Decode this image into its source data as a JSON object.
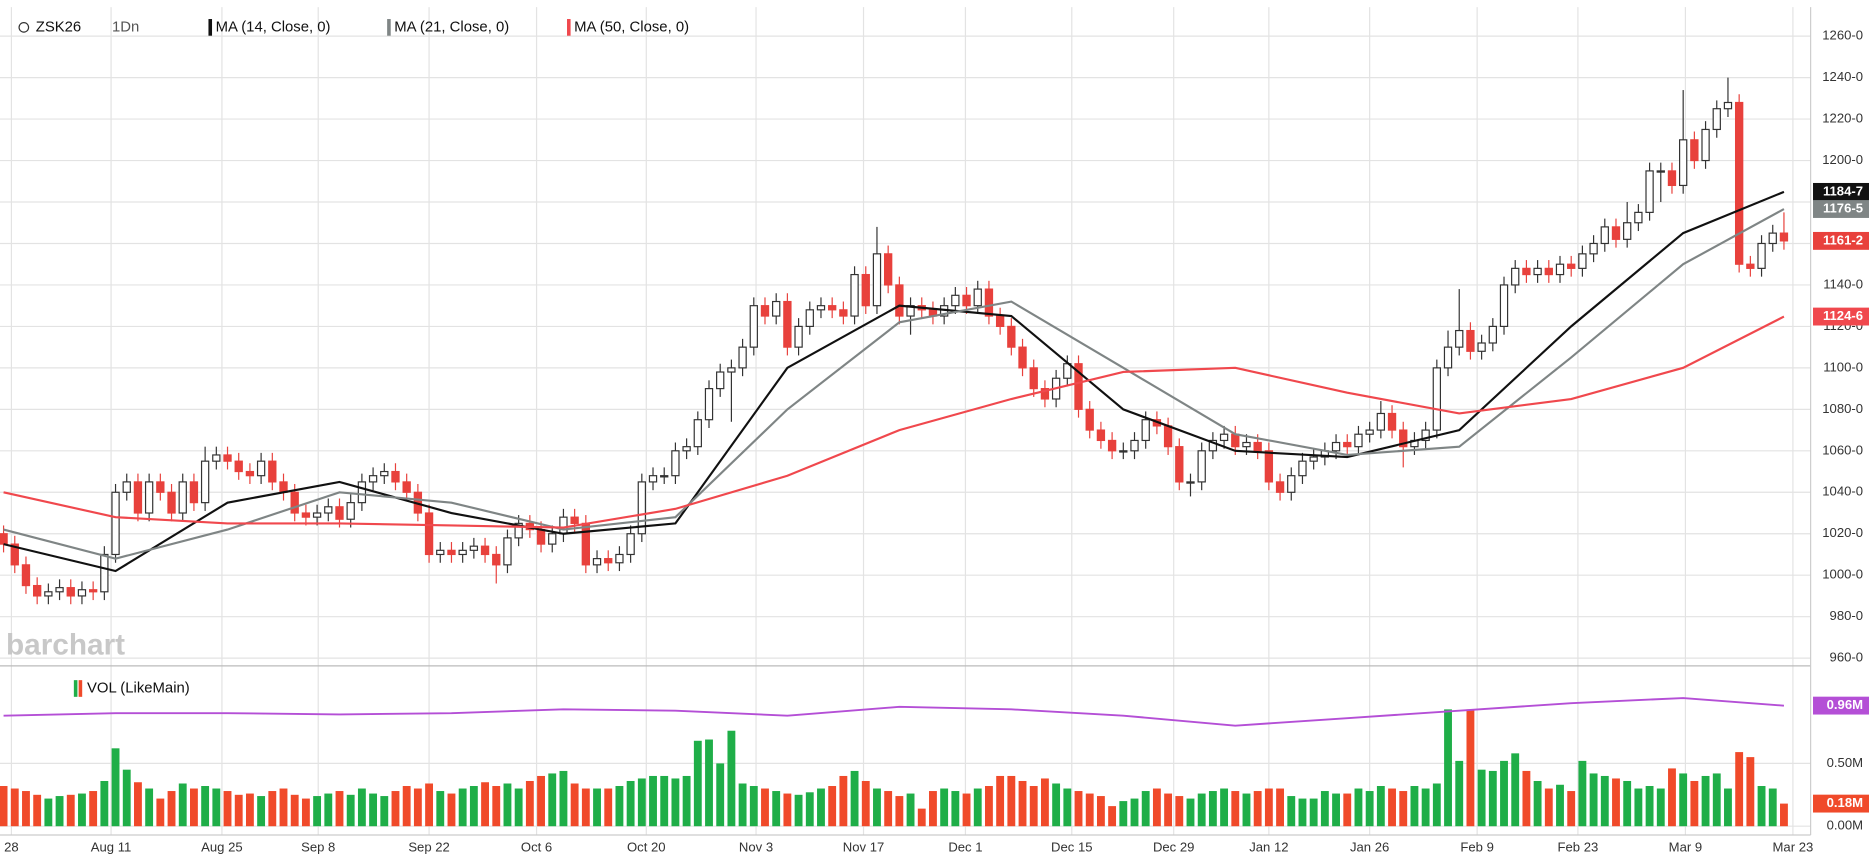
{
  "chart_data": {
    "type": "candlestick",
    "symbol": "ZSK26",
    "interval": "1Dn",
    "watermark": "barchart",
    "up_color": "#ffffff",
    "down_color": "#e8413c",
    "vol_up_color": "#1fae48",
    "vol_down_color": "#f04a2a",
    "ylim": [
      958,
      1274
    ],
    "yticks": [
      {
        "value": 960,
        "label": "960-0"
      },
      {
        "value": 980,
        "label": "980-0"
      },
      {
        "value": 1000,
        "label": "1000-0"
      },
      {
        "value": 1020,
        "label": "1020-0"
      },
      {
        "value": 1040,
        "label": "1040-0"
      },
      {
        "value": 1060,
        "label": "1060-0"
      },
      {
        "value": 1080,
        "label": "1080-0"
      },
      {
        "value": 1100,
        "label": "1100-0"
      },
      {
        "value": 1120,
        "label": "1120-0"
      },
      {
        "value": 1140,
        "label": "1140-0"
      },
      {
        "value": 1160,
        "label": "1160-0"
      },
      {
        "value": 1180,
        "label": "1180-0"
      },
      {
        "value": 1200,
        "label": "1200-0"
      },
      {
        "value": 1220,
        "label": "1220-0"
      },
      {
        "value": 1240,
        "label": "1240-0"
      },
      {
        "value": 1260,
        "label": "1260-0"
      }
    ],
    "xticks": [
      {
        "value": 0.7,
        "label": "28"
      },
      {
        "value": 9.6,
        "label": "Aug 11"
      },
      {
        "value": 19.5,
        "label": "Aug 25"
      },
      {
        "value": 28.1,
        "label": "Sep 8"
      },
      {
        "value": 38,
        "label": "Sep 22"
      },
      {
        "value": 47.6,
        "label": "Oct 6"
      },
      {
        "value": 57.4,
        "label": "Oct 20"
      },
      {
        "value": 67.2,
        "label": "Nov 3"
      },
      {
        "value": 76.8,
        "label": "Nov 17"
      },
      {
        "value": 85.9,
        "label": "Dec 1"
      },
      {
        "value": 95.4,
        "label": "Dec 15"
      },
      {
        "value": 104.5,
        "label": "Dec 29"
      },
      {
        "value": 113,
        "label": "Jan 12"
      },
      {
        "value": 122,
        "label": "Jan 26"
      },
      {
        "value": 131.6,
        "label": "Feb 9"
      },
      {
        "value": 140.6,
        "label": "Feb 23"
      },
      {
        "value": 150.2,
        "label": "Mar 9"
      },
      {
        "value": 159.8,
        "label": "Mar 23"
      }
    ],
    "candles": [
      [
        1020,
        1024,
        1011,
        1015
      ],
      [
        1015,
        1019,
        1001,
        1005
      ],
      [
        1005,
        1009,
        991,
        995
      ],
      [
        995,
        999,
        986,
        990
      ],
      [
        990,
        996,
        986,
        992
      ],
      [
        992,
        998,
        988,
        994
      ],
      [
        994,
        998,
        986,
        990
      ],
      [
        990,
        997,
        986,
        993
      ],
      [
        993,
        997,
        988,
        992
      ],
      [
        992,
        1014,
        988,
        1010
      ],
      [
        1010,
        1044,
        1006,
        1040
      ],
      [
        1040,
        1049,
        1036,
        1045
      ],
      [
        1045,
        1049,
        1026,
        1030
      ],
      [
        1030,
        1049,
        1026,
        1045
      ],
      [
        1045,
        1049,
        1036,
        1040
      ],
      [
        1040,
        1044,
        1026,
        1030
      ],
      [
        1030,
        1049,
        1026,
        1045
      ],
      [
        1045,
        1049,
        1031,
        1035
      ],
      [
        1035,
        1062,
        1031,
        1055
      ],
      [
        1055,
        1062,
        1051,
        1058
      ],
      [
        1058,
        1062,
        1051,
        1055
      ],
      [
        1055,
        1059,
        1046,
        1050
      ],
      [
        1050,
        1054,
        1044,
        1048
      ],
      [
        1048,
        1059,
        1044,
        1055
      ],
      [
        1055,
        1059,
        1041,
        1045
      ],
      [
        1045,
        1049,
        1036,
        1040
      ],
      [
        1040,
        1044,
        1026,
        1030
      ],
      [
        1030,
        1034,
        1024,
        1028
      ],
      [
        1028,
        1034,
        1024,
        1030
      ],
      [
        1030,
        1037,
        1026,
        1033
      ],
      [
        1033,
        1037,
        1023,
        1027
      ],
      [
        1027,
        1039,
        1023,
        1035
      ],
      [
        1035,
        1049,
        1031,
        1045
      ],
      [
        1045,
        1052,
        1041,
        1048
      ],
      [
        1048,
        1054,
        1044,
        1050
      ],
      [
        1050,
        1054,
        1041,
        1045
      ],
      [
        1045,
        1049,
        1036,
        1040
      ],
      [
        1040,
        1044,
        1026,
        1030
      ],
      [
        1030,
        1034,
        1006,
        1010
      ],
      [
        1010,
        1016,
        1006,
        1012
      ],
      [
        1012,
        1016,
        1006,
        1010
      ],
      [
        1010,
        1016,
        1006,
        1012
      ],
      [
        1012,
        1018,
        1008,
        1014
      ],
      [
        1014,
        1018,
        1006,
        1010
      ],
      [
        1010,
        1014,
        996,
        1005
      ],
      [
        1005,
        1022,
        1001,
        1018
      ],
      [
        1018,
        1029,
        1014,
        1025
      ],
      [
        1025,
        1029,
        1018,
        1022
      ],
      [
        1022,
        1026,
        1011,
        1015
      ],
      [
        1015,
        1024,
        1011,
        1020
      ],
      [
        1020,
        1032,
        1016,
        1028
      ],
      [
        1028,
        1032,
        1021,
        1025
      ],
      [
        1025,
        1029,
        1001,
        1005
      ],
      [
        1005,
        1012,
        1001,
        1008
      ],
      [
        1008,
        1012,
        1002,
        1006
      ],
      [
        1006,
        1014,
        1002,
        1010
      ],
      [
        1010,
        1024,
        1006,
        1020
      ],
      [
        1020,
        1049,
        1016,
        1045
      ],
      [
        1045,
        1052,
        1041,
        1048
      ],
      [
        1048,
        1052,
        1044,
        1048
      ],
      [
        1048,
        1064,
        1044,
        1060
      ],
      [
        1060,
        1066,
        1056,
        1062
      ],
      [
        1062,
        1079,
        1058,
        1075
      ],
      [
        1075,
        1094,
        1071,
        1090
      ],
      [
        1090,
        1102,
        1086,
        1098
      ],
      [
        1098,
        1104,
        1074,
        1100
      ],
      [
        1100,
        1114,
        1096,
        1110
      ],
      [
        1110,
        1134,
        1106,
        1130
      ],
      [
        1130,
        1134,
        1121,
        1125
      ],
      [
        1125,
        1136,
        1121,
        1132
      ],
      [
        1132,
        1136,
        1106,
        1110
      ],
      [
        1110,
        1124,
        1106,
        1120
      ],
      [
        1120,
        1132,
        1116,
        1128
      ],
      [
        1128,
        1134,
        1124,
        1130
      ],
      [
        1130,
        1134,
        1124,
        1128
      ],
      [
        1128,
        1132,
        1121,
        1125
      ],
      [
        1125,
        1149,
        1121,
        1145
      ],
      [
        1145,
        1149,
        1126,
        1130
      ],
      [
        1130,
        1168,
        1126,
        1155
      ],
      [
        1155,
        1159,
        1136,
        1140
      ],
      [
        1140,
        1144,
        1121,
        1125
      ],
      [
        1125,
        1134,
        1116,
        1130
      ],
      [
        1130,
        1134,
        1124,
        1128
      ],
      [
        1128,
        1132,
        1121,
        1125
      ],
      [
        1125,
        1134,
        1121,
        1130
      ],
      [
        1130,
        1139,
        1126,
        1135
      ],
      [
        1135,
        1139,
        1126,
        1130
      ],
      [
        1130,
        1142,
        1126,
        1138
      ],
      [
        1138,
        1142,
        1121,
        1125
      ],
      [
        1125,
        1129,
        1116,
        1120
      ],
      [
        1120,
        1124,
        1106,
        1110
      ],
      [
        1110,
        1114,
        1096,
        1100
      ],
      [
        1100,
        1104,
        1086,
        1090
      ],
      [
        1090,
        1094,
        1081,
        1085
      ],
      [
        1085,
        1099,
        1081,
        1095
      ],
      [
        1095,
        1106,
        1091,
        1102
      ],
      [
        1102,
        1106,
        1076,
        1080
      ],
      [
        1080,
        1084,
        1066,
        1070
      ],
      [
        1070,
        1074,
        1061,
        1065
      ],
      [
        1065,
        1069,
        1056,
        1060
      ],
      [
        1060,
        1064,
        1056,
        1060
      ],
      [
        1060,
        1069,
        1056,
        1065
      ],
      [
        1065,
        1079,
        1061,
        1075
      ],
      [
        1075,
        1079,
        1068,
        1072
      ],
      [
        1072,
        1076,
        1058,
        1062
      ],
      [
        1062,
        1066,
        1041,
        1045
      ],
      [
        1045,
        1049,
        1038,
        1045
      ],
      [
        1045,
        1064,
        1041,
        1060
      ],
      [
        1060,
        1069,
        1056,
        1065
      ],
      [
        1065,
        1072,
        1061,
        1068
      ],
      [
        1068,
        1072,
        1058,
        1062
      ],
      [
        1062,
        1068,
        1058,
        1064
      ],
      [
        1064,
        1068,
        1056,
        1060
      ],
      [
        1060,
        1064,
        1041,
        1045
      ],
      [
        1045,
        1049,
        1036,
        1040
      ],
      [
        1040,
        1052,
        1036,
        1048
      ],
      [
        1048,
        1059,
        1044,
        1055
      ],
      [
        1055,
        1061,
        1051,
        1057
      ],
      [
        1057,
        1064,
        1053,
        1060
      ],
      [
        1060,
        1068,
        1056,
        1064
      ],
      [
        1064,
        1068,
        1058,
        1062
      ],
      [
        1062,
        1072,
        1058,
        1068
      ],
      [
        1068,
        1074,
        1064,
        1070
      ],
      [
        1070,
        1084,
        1066,
        1078
      ],
      [
        1078,
        1082,
        1066,
        1070
      ],
      [
        1070,
        1074,
        1052,
        1062
      ],
      [
        1062,
        1069,
        1058,
        1065
      ],
      [
        1065,
        1074,
        1061,
        1070
      ],
      [
        1070,
        1104,
        1066,
        1100
      ],
      [
        1100,
        1118,
        1096,
        1110
      ],
      [
        1110,
        1138,
        1106,
        1118
      ],
      [
        1118,
        1122,
        1104,
        1108
      ],
      [
        1108,
        1116,
        1104,
        1112
      ],
      [
        1112,
        1124,
        1108,
        1120
      ],
      [
        1120,
        1144,
        1116,
        1140
      ],
      [
        1140,
        1152,
        1136,
        1148
      ],
      [
        1148,
        1152,
        1141,
        1145
      ],
      [
        1145,
        1152,
        1141,
        1148
      ],
      [
        1148,
        1152,
        1141,
        1145
      ],
      [
        1145,
        1154,
        1141,
        1150
      ],
      [
        1150,
        1154,
        1144,
        1148
      ],
      [
        1148,
        1159,
        1144,
        1155
      ],
      [
        1155,
        1164,
        1151,
        1160
      ],
      [
        1160,
        1172,
        1156,
        1168
      ],
      [
        1168,
        1172,
        1158,
        1162
      ],
      [
        1162,
        1180,
        1158,
        1170
      ],
      [
        1170,
        1179,
        1166,
        1175
      ],
      [
        1175,
        1199,
        1171,
        1195
      ],
      [
        1195,
        1199,
        1180,
        1195
      ],
      [
        1195,
        1199,
        1184,
        1188
      ],
      [
        1188,
        1234,
        1184,
        1210
      ],
      [
        1210,
        1214,
        1196,
        1200
      ],
      [
        1200,
        1219,
        1196,
        1215
      ],
      [
        1215,
        1229,
        1211,
        1225
      ],
      [
        1225,
        1240,
        1221,
        1228
      ],
      [
        1228,
        1232,
        1146,
        1150
      ],
      [
        1150,
        1154,
        1144,
        1148
      ],
      [
        1148,
        1164,
        1144,
        1160
      ],
      [
        1160,
        1169,
        1156,
        1165
      ],
      [
        1165,
        1175,
        1157,
        1161.25
      ]
    ],
    "last_price": {
      "value": 1161.25,
      "label": "1161-2"
    },
    "moving_averages": [
      {
        "name": "MA (14, Close, 0)",
        "color": "#111111",
        "x": [
          0,
          10,
          20,
          30,
          40,
          50,
          60,
          70,
          80,
          90,
          100,
          110,
          120,
          130,
          140,
          150,
          159
        ],
        "values": [
          1015,
          1002,
          1035,
          1045,
          1030,
          1020,
          1025,
          1100,
          1130,
          1125,
          1080,
          1060,
          1057,
          1070,
          1120,
          1165,
          1184.875
        ],
        "last": {
          "value": 1184.875,
          "label": "1184-7"
        }
      },
      {
        "name": "MA (21, Close, 0)",
        "color": "#7f8585",
        "x": [
          0,
          10,
          20,
          30,
          40,
          50,
          60,
          70,
          80,
          90,
          100,
          110,
          120,
          130,
          140,
          150,
          159
        ],
        "values": [
          1022,
          1008,
          1022,
          1040,
          1035,
          1022,
          1028,
          1080,
          1122,
          1132,
          1100,
          1068,
          1058,
          1062,
          1105,
          1150,
          1176.625
        ],
        "last": {
          "value": 1176.625,
          "label": "1176-5"
        }
      },
      {
        "name": "MA (50, Close, 0)",
        "color": "#f0484d",
        "x": [
          0,
          10,
          20,
          30,
          40,
          50,
          60,
          70,
          80,
          90,
          100,
          110,
          120,
          130,
          140,
          150,
          159
        ],
        "values": [
          1040,
          1028,
          1025,
          1025,
          1024,
          1023,
          1032,
          1048,
          1070,
          1085,
          1098,
          1100,
          1088,
          1078,
          1085,
          1100,
          1124.75
        ],
        "last": {
          "value": 1124.75,
          "label": "1124-6"
        }
      }
    ],
    "volume_study": "VOL (LikeMain)",
    "vol_ylim": [
      -0.07,
      1.21
    ],
    "vol_yticks": [
      {
        "value": 0,
        "label": "0.00M"
      },
      {
        "value": 0.5,
        "label": "0.50M"
      }
    ],
    "volume": [
      0.32,
      0.3,
      0.28,
      0.25,
      0.22,
      0.24,
      0.25,
      0.26,
      0.28,
      0.36,
      0.62,
      0.45,
      0.35,
      0.3,
      0.22,
      0.28,
      0.34,
      0.3,
      0.32,
      0.3,
      0.28,
      0.25,
      0.26,
      0.24,
      0.28,
      0.3,
      0.25,
      0.22,
      0.24,
      0.26,
      0.28,
      0.25,
      0.3,
      0.26,
      0.24,
      0.28,
      0.32,
      0.3,
      0.34,
      0.28,
      0.26,
      0.3,
      0.32,
      0.35,
      0.32,
      0.34,
      0.3,
      0.36,
      0.4,
      0.42,
      0.44,
      0.34,
      0.3,
      0.3,
      0.3,
      0.32,
      0.36,
      0.38,
      0.4,
      0.4,
      0.38,
      0.4,
      0.68,
      0.69,
      0.5,
      0.76,
      0.34,
      0.32,
      0.3,
      0.28,
      0.26,
      0.25,
      0.27,
      0.3,
      0.32,
      0.4,
      0.44,
      0.36,
      0.3,
      0.28,
      0.24,
      0.26,
      0.14,
      0.28,
      0.3,
      0.28,
      0.26,
      0.3,
      0.32,
      0.4,
      0.4,
      0.36,
      0.32,
      0.38,
      0.34,
      0.3,
      0.28,
      0.26,
      0.24,
      0.16,
      0.2,
      0.22,
      0.28,
      0.3,
      0.26,
      0.24,
      0.22,
      0.26,
      0.28,
      0.3,
      0.28,
      0.26,
      0.28,
      0.3,
      0.3,
      0.24,
      0.22,
      0.22,
      0.28,
      0.26,
      0.26,
      0.3,
      0.28,
      0.32,
      0.3,
      0.28,
      0.32,
      0.3,
      0.34,
      0.93,
      0.52,
      0.93,
      0.45,
      0.44,
      0.52,
      0.58,
      0.44,
      0.36,
      0.3,
      0.33,
      0.28,
      0.52,
      0.42,
      0.4,
      0.38,
      0.36,
      0.3,
      0.32,
      0.3,
      0.46,
      0.42,
      0.36,
      0.4,
      0.42,
      0.3,
      0.59,
      0.55,
      0.32,
      0.3,
      0.18
    ],
    "last_volume": {
      "value": 0.18,
      "label": "0.18M"
    },
    "volume_average": {
      "color": "#b44fd6",
      "x": [
        0,
        10,
        20,
        30,
        40,
        50,
        60,
        70,
        80,
        90,
        100,
        110,
        120,
        130,
        140,
        150,
        159
      ],
      "values": [
        0.88,
        0.9,
        0.9,
        0.89,
        0.9,
        0.93,
        0.92,
        0.88,
        0.95,
        0.93,
        0.88,
        0.8,
        0.86,
        0.92,
        0.98,
        1.02,
        0.96
      ],
      "last": {
        "value": 0.96,
        "label": "0.96M"
      }
    }
  }
}
